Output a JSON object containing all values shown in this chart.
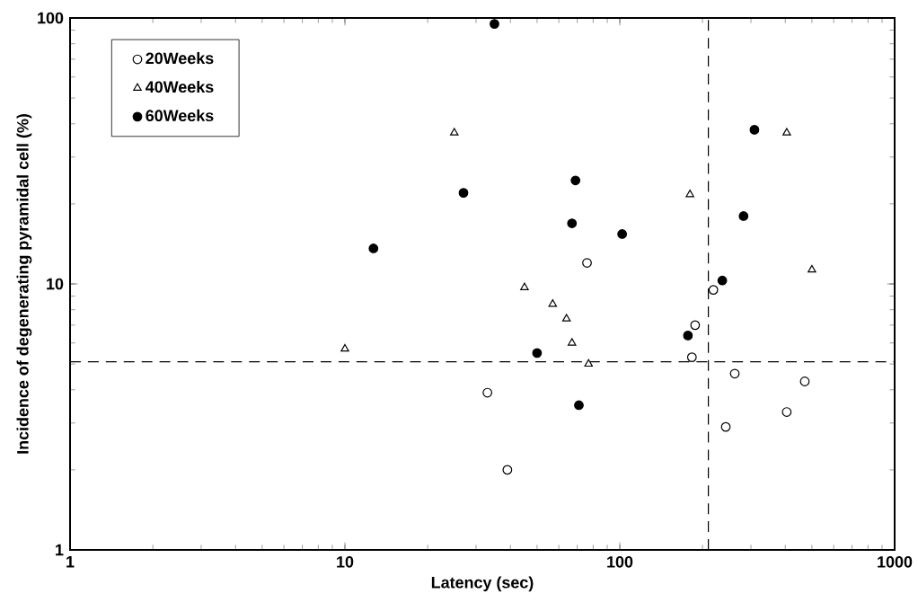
{
  "chart_data": {
    "type": "scatter",
    "xlabel": "Latency (sec)",
    "ylabel": "Incidence of degenerating pyramidal cell (%)",
    "log": "xy",
    "xlim": [
      1,
      1000
    ],
    "ylim": [
      1,
      100
    ],
    "xticks": [
      1,
      10,
      100,
      1000
    ],
    "yticks": [
      1,
      10,
      100
    ],
    "grid": false,
    "legend": "top left",
    "series": [
      {
        "name": "20Weeks",
        "color": "#ffffff",
        "marker": "circle",
        "x": [
          76,
          219,
          188,
          183,
          262,
          471,
          405,
          243,
          33,
          39
        ],
        "values": [
          12,
          9.5,
          7.0,
          5.3,
          4.6,
          4.3,
          3.3,
          2.9,
          3.9,
          2.0
        ]
      },
      {
        "name": "40Weeks",
        "color": "#ffffff",
        "marker": "triangle",
        "x": [
          25,
          10,
          45,
          57,
          64,
          67,
          77,
          180,
          405,
          500
        ],
        "values": [
          37,
          5.7,
          9.7,
          8.4,
          7.4,
          6.0,
          5.0,
          21.7,
          37,
          11.3
        ]
      },
      {
        "name": "60Weeks",
        "color": "#000000",
        "marker": "circle",
        "x": [
          12.7,
          27,
          35,
          69,
          67,
          102,
          50,
          71,
          177,
          236,
          282,
          309
        ],
        "values": [
          13.6,
          22,
          95,
          24.5,
          16.9,
          15.4,
          5.5,
          3.5,
          6.4,
          10.3,
          18,
          38
        ]
      }
    ],
    "ref_lines": [
      {
        "axis": "x",
        "value": 210,
        "line_style": "dashed"
      },
      {
        "axis": "y",
        "value": 5.1,
        "line_style": "dashed"
      }
    ]
  }
}
